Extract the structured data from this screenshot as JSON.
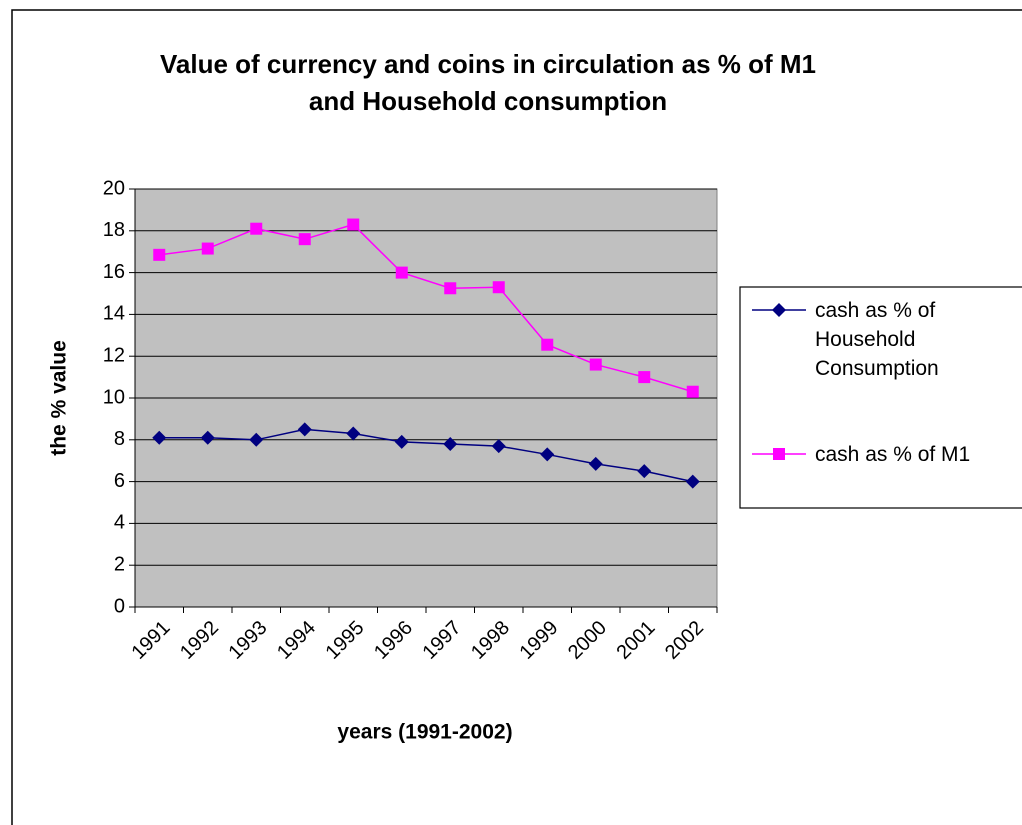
{
  "chart_data": {
    "type": "line",
    "title": "Value of currency and coins in circulation as % of M1 and Household consumption",
    "x_label": "years (1991-2002)",
    "y_label": "the % value",
    "categories": [
      "1991",
      "1992",
      "1993",
      "1994",
      "1995",
      "1996",
      "1997",
      "1998",
      "1999",
      "2000",
      "2001",
      "2002"
    ],
    "series": [
      {
        "name": "cash as % of Household Consumption",
        "color": "#000080",
        "marker": "diamond",
        "values": [
          8.1,
          8.1,
          8.0,
          8.5,
          8.3,
          7.9,
          7.8,
          7.7,
          7.3,
          6.85,
          6.5,
          6.0
        ]
      },
      {
        "name": "cash as % of M1",
        "color": "#ff00ff",
        "marker": "square",
        "values": [
          16.85,
          17.15,
          18.1,
          17.6,
          18.3,
          16.0,
          15.25,
          15.3,
          12.55,
          11.6,
          11.0,
          10.3
        ]
      }
    ],
    "ylim": [
      0,
      20
    ],
    "yticks": [
      0,
      2,
      4,
      6,
      8,
      10,
      12,
      14,
      16,
      18,
      20
    ],
    "grid": true,
    "legend": "right",
    "plot_background": "#c0c0c0"
  }
}
